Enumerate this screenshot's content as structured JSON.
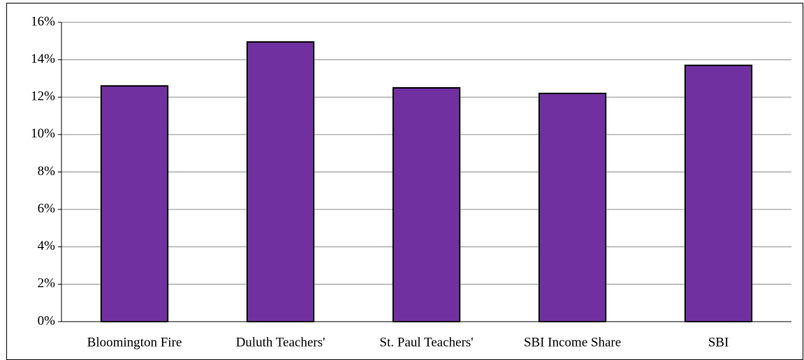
{
  "chart_data": {
    "type": "bar",
    "categories": [
      "Bloomington Fire",
      "Duluth Teachers'",
      "St. Paul Teachers'",
      "SBI Income Share",
      "SBI"
    ],
    "values": [
      12.6,
      14.95,
      12.5,
      12.2,
      13.7
    ],
    "color": "#7030a0",
    "ylim": [
      0,
      16
    ],
    "yticks": [
      {
        "value": 0,
        "label": "0%"
      },
      {
        "value": 2,
        "label": "2%"
      },
      {
        "value": 4,
        "label": "4%"
      },
      {
        "value": 6,
        "label": "6%"
      },
      {
        "value": 8,
        "label": "8%"
      },
      {
        "value": 10,
        "label": "10%"
      },
      {
        "value": 12,
        "label": "12%"
      },
      {
        "value": 14,
        "label": "14%"
      },
      {
        "value": 16,
        "label": "16%"
      }
    ],
    "grid": true
  }
}
